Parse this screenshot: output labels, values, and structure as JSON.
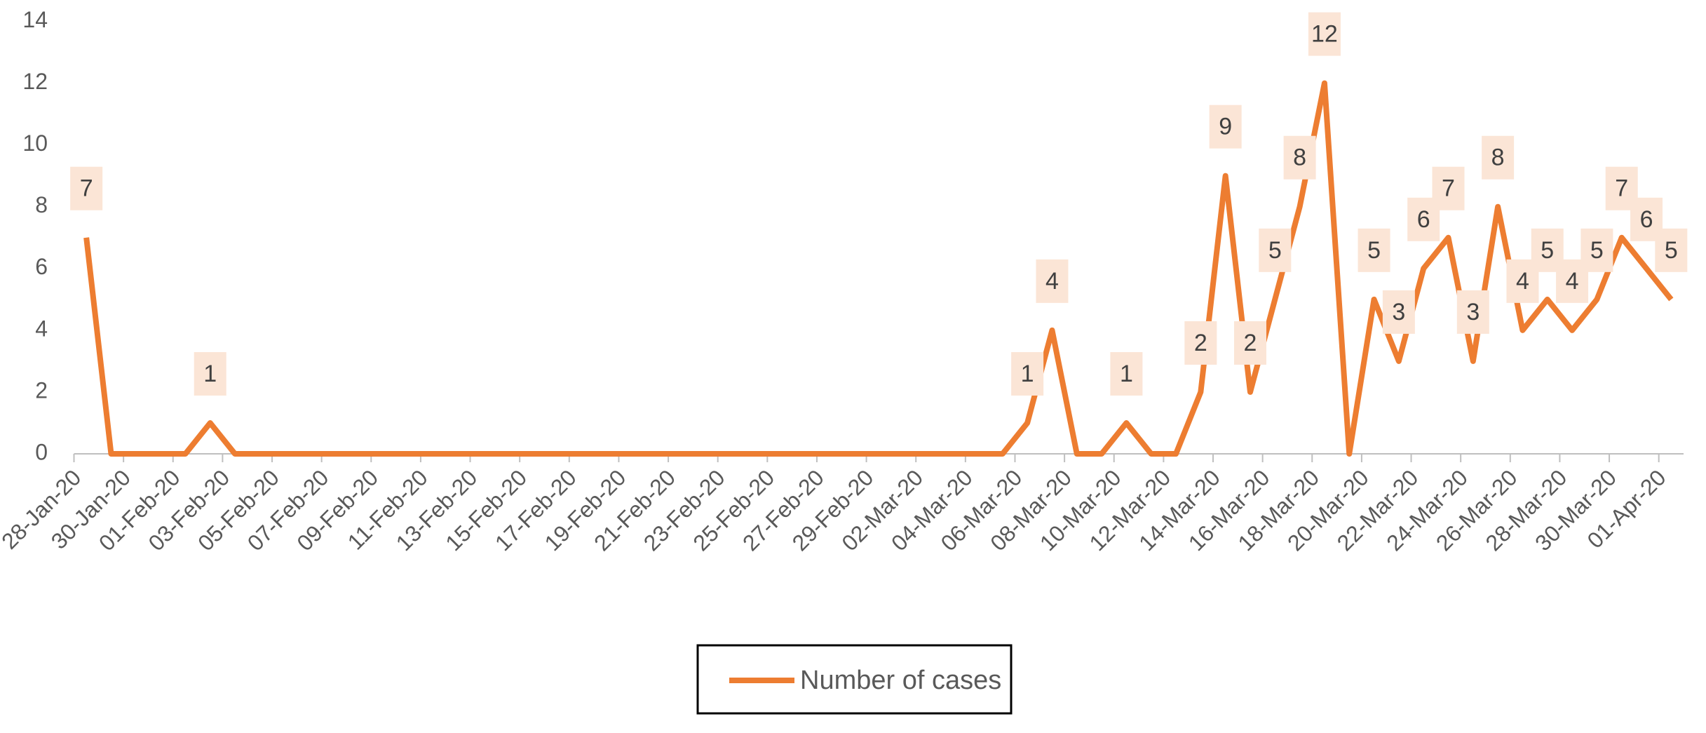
{
  "chart_data": {
    "type": "line",
    "categories": [
      "28-Jan-20",
      null,
      "30-Jan-20",
      null,
      "01-Feb-20",
      null,
      "03-Feb-20",
      null,
      "05-Feb-20",
      null,
      "07-Feb-20",
      null,
      "09-Feb-20",
      null,
      "11-Feb-20",
      null,
      "13-Feb-20",
      null,
      "15-Feb-20",
      null,
      "17-Feb-20",
      null,
      "19-Feb-20",
      null,
      "21-Feb-20",
      null,
      "23-Feb-20",
      null,
      "25-Feb-20",
      null,
      "27-Feb-20",
      null,
      "29-Feb-20",
      null,
      "02-Mar-20",
      null,
      "04-Mar-20",
      null,
      "06-Mar-20",
      null,
      "08-Mar-20",
      null,
      "10-Mar-20",
      null,
      "12-Mar-20",
      null,
      "14-Mar-20",
      null,
      "16-Mar-20",
      null,
      "18-Mar-20",
      null,
      "20-Mar-20",
      null,
      "22-Mar-20",
      null,
      "24-Mar-20",
      null,
      "26-Mar-20",
      null,
      "28-Mar-20",
      null,
      "30-Mar-20",
      null,
      "01-Apr-20"
    ],
    "series": [
      {
        "name": "Number of cases",
        "color": "#ed7d31",
        "values": [
          7,
          0,
          0,
          0,
          0,
          1,
          0,
          0,
          0,
          0,
          0,
          0,
          0,
          0,
          0,
          0,
          0,
          0,
          0,
          0,
          0,
          0,
          0,
          0,
          0,
          0,
          0,
          0,
          0,
          0,
          0,
          0,
          0,
          0,
          0,
          0,
          0,
          0,
          1,
          4,
          0,
          0,
          1,
          0,
          0,
          2,
          9,
          2,
          5,
          8,
          12,
          0,
          5,
          3,
          6,
          7,
          3,
          8,
          4,
          5,
          4,
          5,
          7,
          6,
          5
        ]
      }
    ],
    "ylim": [
      0,
      14
    ],
    "yticks": [
      0,
      2,
      4,
      6,
      8,
      10,
      12,
      14
    ],
    "grid": false,
    "legend": "bottom"
  }
}
